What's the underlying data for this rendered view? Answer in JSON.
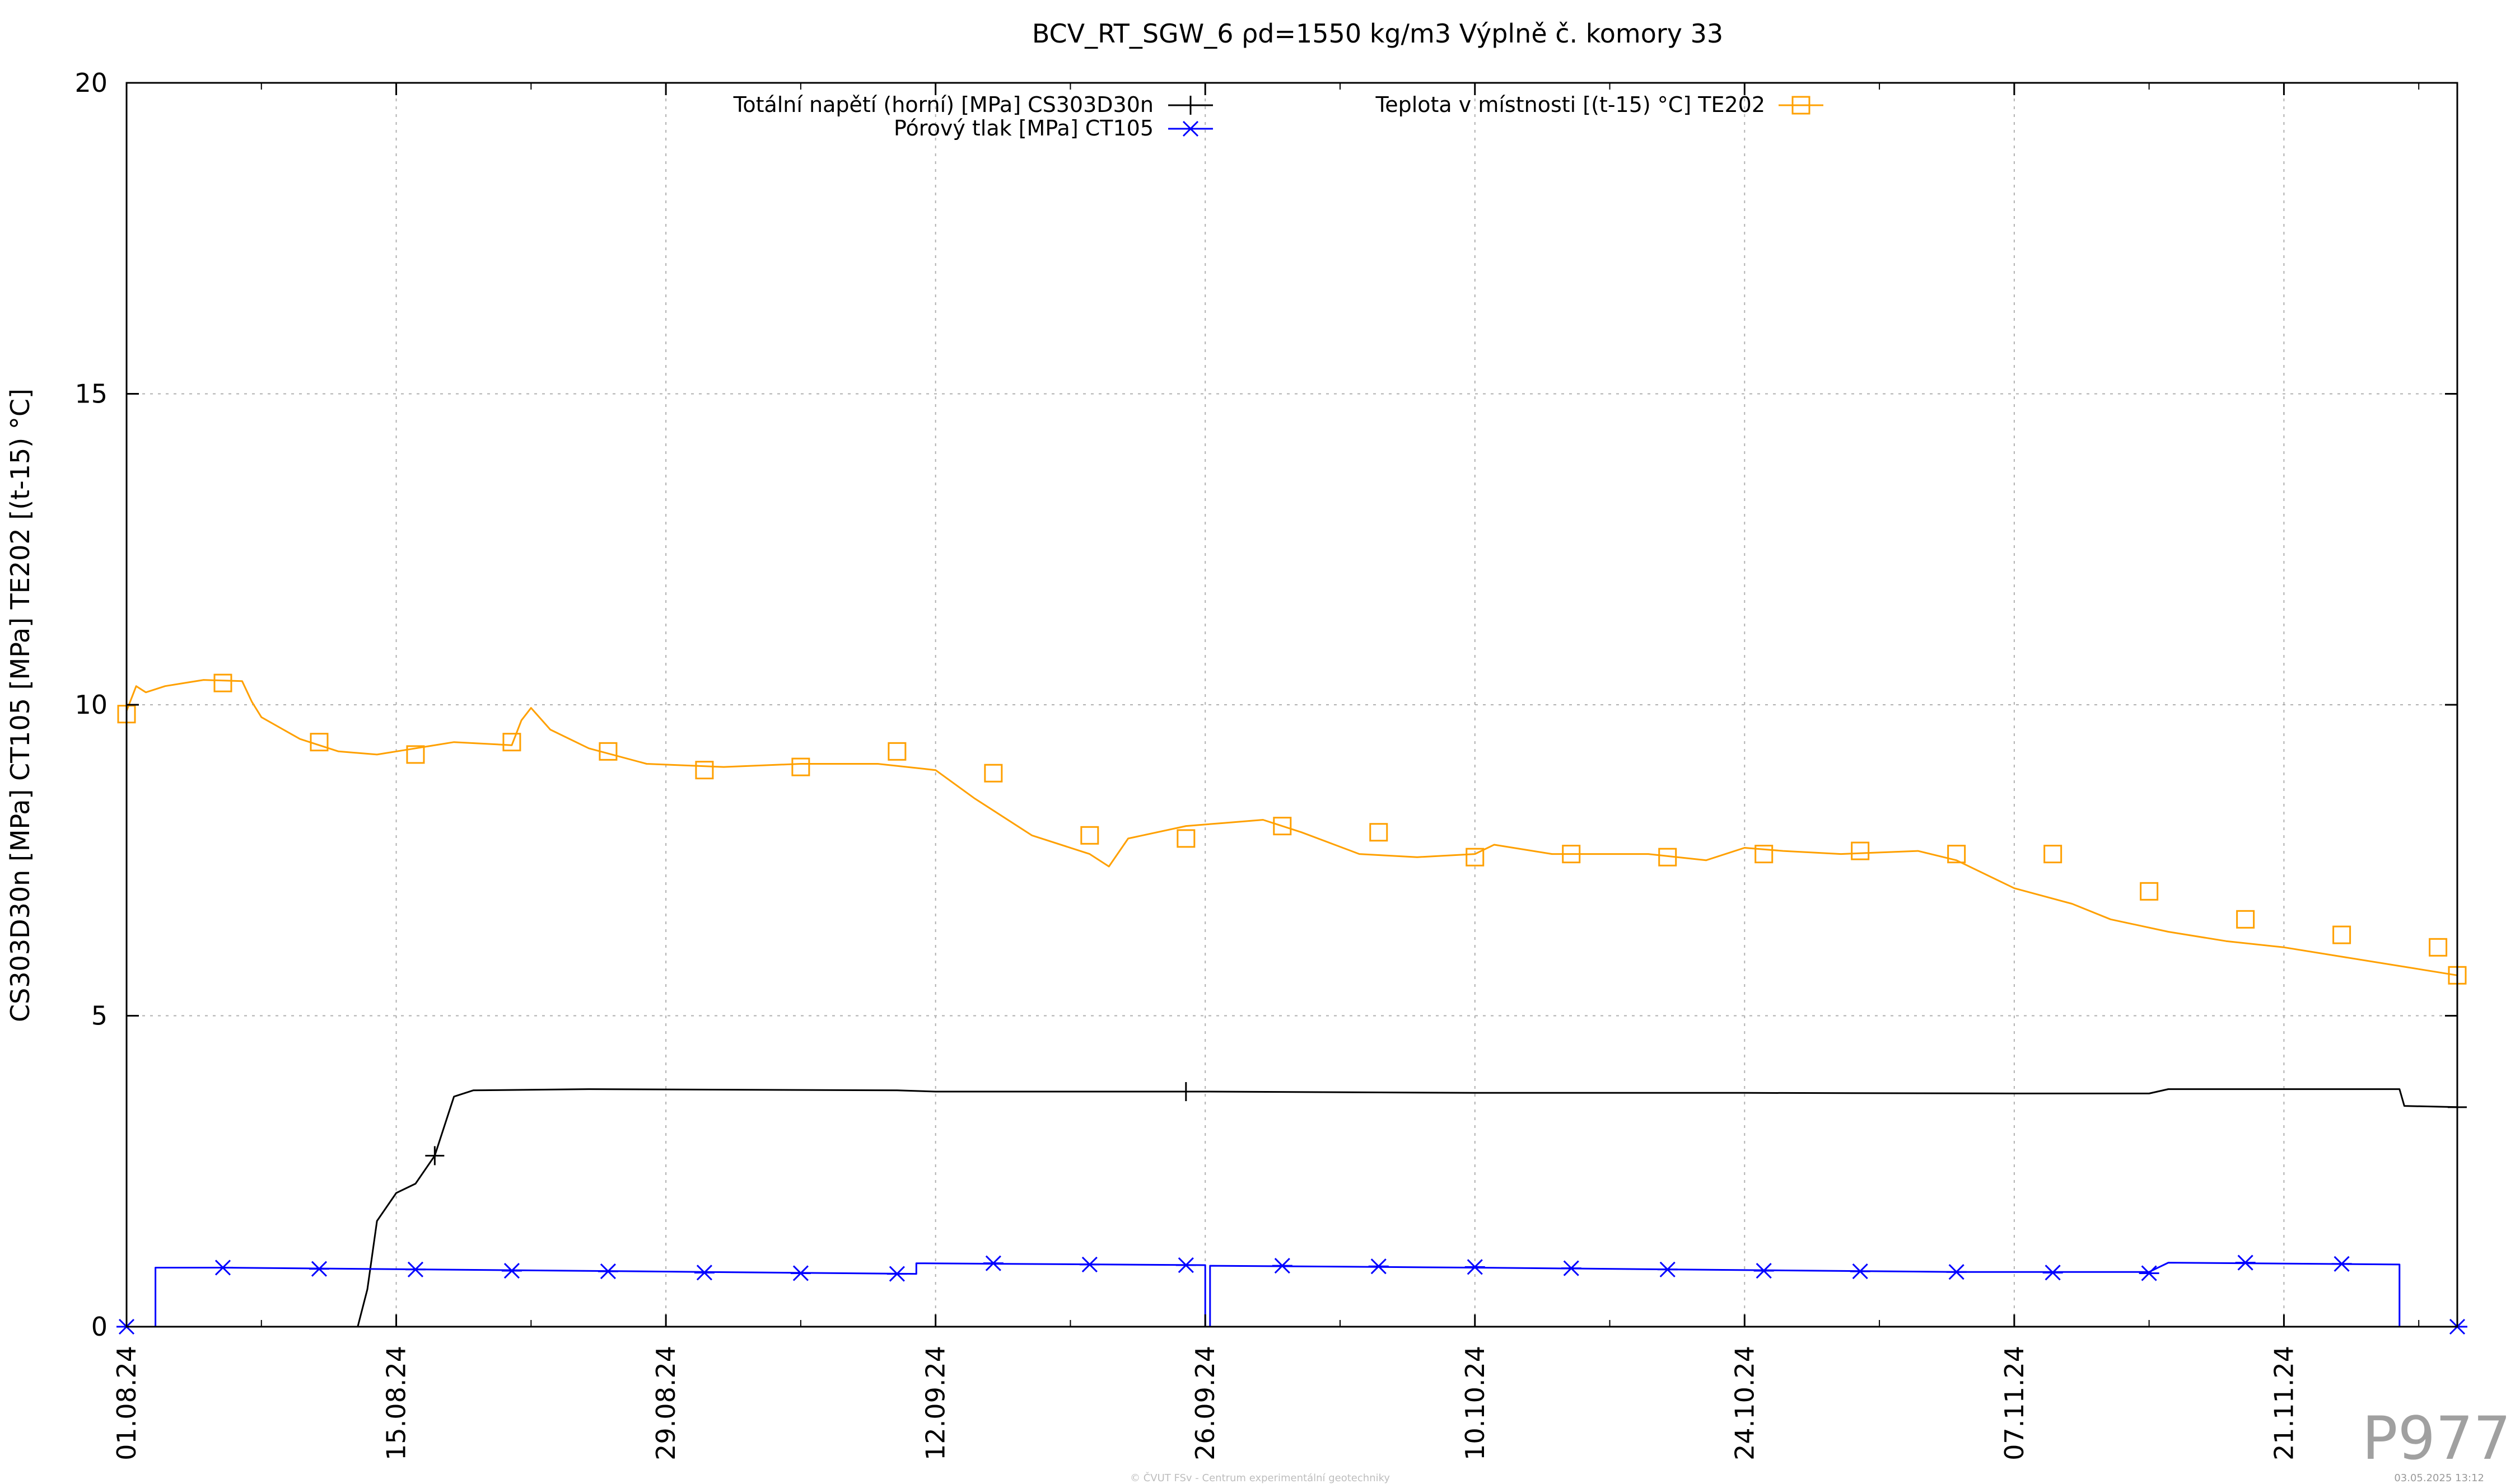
{
  "chart_data": {
    "type": "line",
    "title": "BCV_RT_SGW_6 ρd=1550 kg/m3 Výplně č. komory 33",
    "xlabel": "",
    "ylabel": "CS303D30n [MPa] CT105 [MPa] TE202 [(t-15) °C]",
    "ylim": [
      0,
      20
    ],
    "yticks": [
      0,
      5,
      10,
      15,
      20
    ],
    "xlim": [
      "2024-08-01",
      "2024-11-30"
    ],
    "xticks": [
      "01.08.24",
      "15.08.24",
      "29.08.24",
      "12.09.24",
      "26.09.24",
      "10.10.24",
      "24.10.24",
      "07.11.24",
      "21.11.24"
    ],
    "grid": true,
    "legend_position": "top",
    "series": [
      {
        "name": "Totální napětí (horní) [MPa] CS303D30n",
        "color": "#000000",
        "marker": "plus",
        "points": [
          [
            "2024-08-01",
            0
          ],
          [
            "2024-08-13",
            0
          ],
          [
            "2024-08-13T12:00",
            0.6
          ],
          [
            "2024-08-14",
            1.7
          ],
          [
            "2024-08-15",
            2.15
          ],
          [
            "2024-08-16",
            2.3
          ],
          [
            "2024-08-17",
            2.75
          ],
          [
            "2024-08-18",
            3.7
          ],
          [
            "2024-08-19",
            3.8
          ],
          [
            "2024-08-25",
            3.82
          ],
          [
            "2024-09-10",
            3.8
          ],
          [
            "2024-09-12",
            3.78
          ],
          [
            "2024-09-26",
            3.78
          ],
          [
            "2024-10-10",
            3.76
          ],
          [
            "2024-10-24",
            3.76
          ],
          [
            "2024-11-07",
            3.75
          ],
          [
            "2024-11-14",
            3.75
          ],
          [
            "2024-11-15",
            3.82
          ],
          [
            "2024-11-27",
            3.82
          ],
          [
            "2024-11-27T06:00",
            3.55
          ],
          [
            "2024-11-30",
            3.53
          ]
        ],
        "marker_points": [
          [
            "2024-08-17",
            2.75
          ],
          [
            "2024-09-25",
            3.78
          ],
          [
            "2024-11-30",
            3.53
          ]
        ]
      },
      {
        "name": "Pórový tlak [MPa] CT105",
        "color": "#0000ff",
        "marker": "star",
        "points": [
          [
            "2024-08-01",
            0
          ],
          [
            "2024-08-02T12:00",
            0
          ],
          [
            "2024-08-02T12:00",
            0.95
          ],
          [
            "2024-08-06",
            0.95
          ],
          [
            "2024-09-11",
            0.85
          ],
          [
            "2024-09-11",
            1.02
          ],
          [
            "2024-09-26",
            0.99
          ],
          [
            "2024-09-26",
            0
          ],
          [
            "2024-09-26T06:00",
            0
          ],
          [
            "2024-09-26T06:00",
            0.98
          ],
          [
            "2024-10-10",
            0.95
          ],
          [
            "2024-11-04",
            0.88
          ],
          [
            "2024-11-14",
            0.88
          ],
          [
            "2024-11-15",
            1.03
          ],
          [
            "2024-11-27",
            1.0
          ],
          [
            "2024-11-27",
            0
          ],
          [
            "2024-11-30",
            0
          ]
        ],
        "marker_points": [
          [
            "2024-08-01",
            0
          ],
          [
            "2024-08-06",
            0.95
          ],
          [
            "2024-08-11",
            0.93
          ],
          [
            "2024-08-16",
            0.92
          ],
          [
            "2024-08-21",
            0.9
          ],
          [
            "2024-08-26",
            0.89
          ],
          [
            "2024-08-31",
            0.87
          ],
          [
            "2024-09-05",
            0.86
          ],
          [
            "2024-09-10",
            0.85
          ],
          [
            "2024-09-15",
            1.02
          ],
          [
            "2024-09-20",
            1.0
          ],
          [
            "2024-09-25",
            0.99
          ],
          [
            "2024-09-30",
            0.98
          ],
          [
            "2024-10-05",
            0.97
          ],
          [
            "2024-10-10",
            0.96
          ],
          [
            "2024-10-15",
            0.94
          ],
          [
            "2024-10-20",
            0.92
          ],
          [
            "2024-10-25",
            0.9
          ],
          [
            "2024-10-30",
            0.89
          ],
          [
            "2024-11-04",
            0.88
          ],
          [
            "2024-11-09",
            0.87
          ],
          [
            "2024-11-14",
            0.86
          ],
          [
            "2024-11-19",
            1.03
          ],
          [
            "2024-11-24",
            1.01
          ],
          [
            "2024-11-30",
            0
          ]
        ]
      },
      {
        "name": "Teplota v místnosti [(t-15) °C] TE202",
        "color": "#ffa000",
        "marker": "square",
        "points": [
          [
            "2024-08-01",
            9.9
          ],
          [
            "2024-08-01T12:00",
            10.3
          ],
          [
            "2024-08-02",
            10.2
          ],
          [
            "2024-08-03",
            10.3
          ],
          [
            "2024-08-04",
            10.35
          ],
          [
            "2024-08-05",
            10.4
          ],
          [
            "2024-08-07",
            10.38
          ],
          [
            "2024-08-07T12:00",
            10.05
          ],
          [
            "2024-08-08",
            9.8
          ],
          [
            "2024-08-10",
            9.45
          ],
          [
            "2024-08-12",
            9.25
          ],
          [
            "2024-08-14",
            9.2
          ],
          [
            "2024-08-16",
            9.3
          ],
          [
            "2024-08-18",
            9.4
          ],
          [
            "2024-08-21",
            9.35
          ],
          [
            "2024-08-21T12:00",
            9.75
          ],
          [
            "2024-08-22",
            9.95
          ],
          [
            "2024-08-23",
            9.6
          ],
          [
            "2024-08-25",
            9.3
          ],
          [
            "2024-08-28",
            9.05
          ],
          [
            "2024-09-01",
            9.0
          ],
          [
            "2024-09-05",
            9.05
          ],
          [
            "2024-09-09",
            9.05
          ],
          [
            "2024-09-12",
            8.95
          ],
          [
            "2024-09-14",
            8.5
          ],
          [
            "2024-09-17",
            7.9
          ],
          [
            "2024-09-20",
            7.6
          ],
          [
            "2024-09-21",
            7.4
          ],
          [
            "2024-09-22",
            7.85
          ],
          [
            "2024-09-25",
            8.05
          ],
          [
            "2024-09-27",
            8.1
          ],
          [
            "2024-09-29",
            8.15
          ],
          [
            "2024-10-01",
            7.95
          ],
          [
            "2024-10-04",
            7.6
          ],
          [
            "2024-10-07",
            7.55
          ],
          [
            "2024-10-10",
            7.6
          ],
          [
            "2024-10-11",
            7.75
          ],
          [
            "2024-10-14",
            7.6
          ],
          [
            "2024-10-19",
            7.6
          ],
          [
            "2024-10-22",
            7.5
          ],
          [
            "2024-10-24",
            7.7
          ],
          [
            "2024-10-26",
            7.65
          ],
          [
            "2024-10-29",
            7.6
          ],
          [
            "2024-11-02",
            7.65
          ],
          [
            "2024-11-04",
            7.5
          ],
          [
            "2024-11-07",
            7.05
          ],
          [
            "2024-11-10",
            6.8
          ],
          [
            "2024-11-12",
            6.55
          ],
          [
            "2024-11-15",
            6.35
          ],
          [
            "2024-11-18",
            6.2
          ],
          [
            "2024-11-21",
            6.1
          ],
          [
            "2024-11-24",
            5.95
          ],
          [
            "2024-11-27",
            5.8
          ],
          [
            "2024-11-30",
            5.65
          ]
        ],
        "marker_points": [
          [
            "2024-08-01",
            9.85
          ],
          [
            "2024-08-06",
            10.35
          ],
          [
            "2024-08-11",
            9.4
          ],
          [
            "2024-08-16",
            9.2
          ],
          [
            "2024-08-21",
            9.4
          ],
          [
            "2024-08-26",
            9.25
          ],
          [
            "2024-08-31",
            8.95
          ],
          [
            "2024-09-05",
            9.0
          ],
          [
            "2024-09-10",
            9.25
          ],
          [
            "2024-09-15",
            8.9
          ],
          [
            "2024-09-20",
            7.9
          ],
          [
            "2024-09-25",
            7.85
          ],
          [
            "2024-09-30",
            8.05
          ],
          [
            "2024-10-05",
            7.95
          ],
          [
            "2024-10-10",
            7.55
          ],
          [
            "2024-10-15",
            7.6
          ],
          [
            "2024-10-20",
            7.55
          ],
          [
            "2024-10-25",
            7.6
          ],
          [
            "2024-10-30",
            7.65
          ],
          [
            "2024-11-04",
            7.6
          ],
          [
            "2024-11-09",
            7.6
          ],
          [
            "2024-11-14",
            7.0
          ],
          [
            "2024-11-19",
            6.55
          ],
          [
            "2024-11-24",
            6.3
          ],
          [
            "2024-11-29",
            6.1
          ],
          [
            "2024-11-30",
            5.65
          ]
        ]
      }
    ]
  },
  "footer": {
    "copyright": "© ČVUT FSv - Centrum experimentální geotechniky",
    "date": "03.05.2025 13:12",
    "watermark": "P977"
  }
}
